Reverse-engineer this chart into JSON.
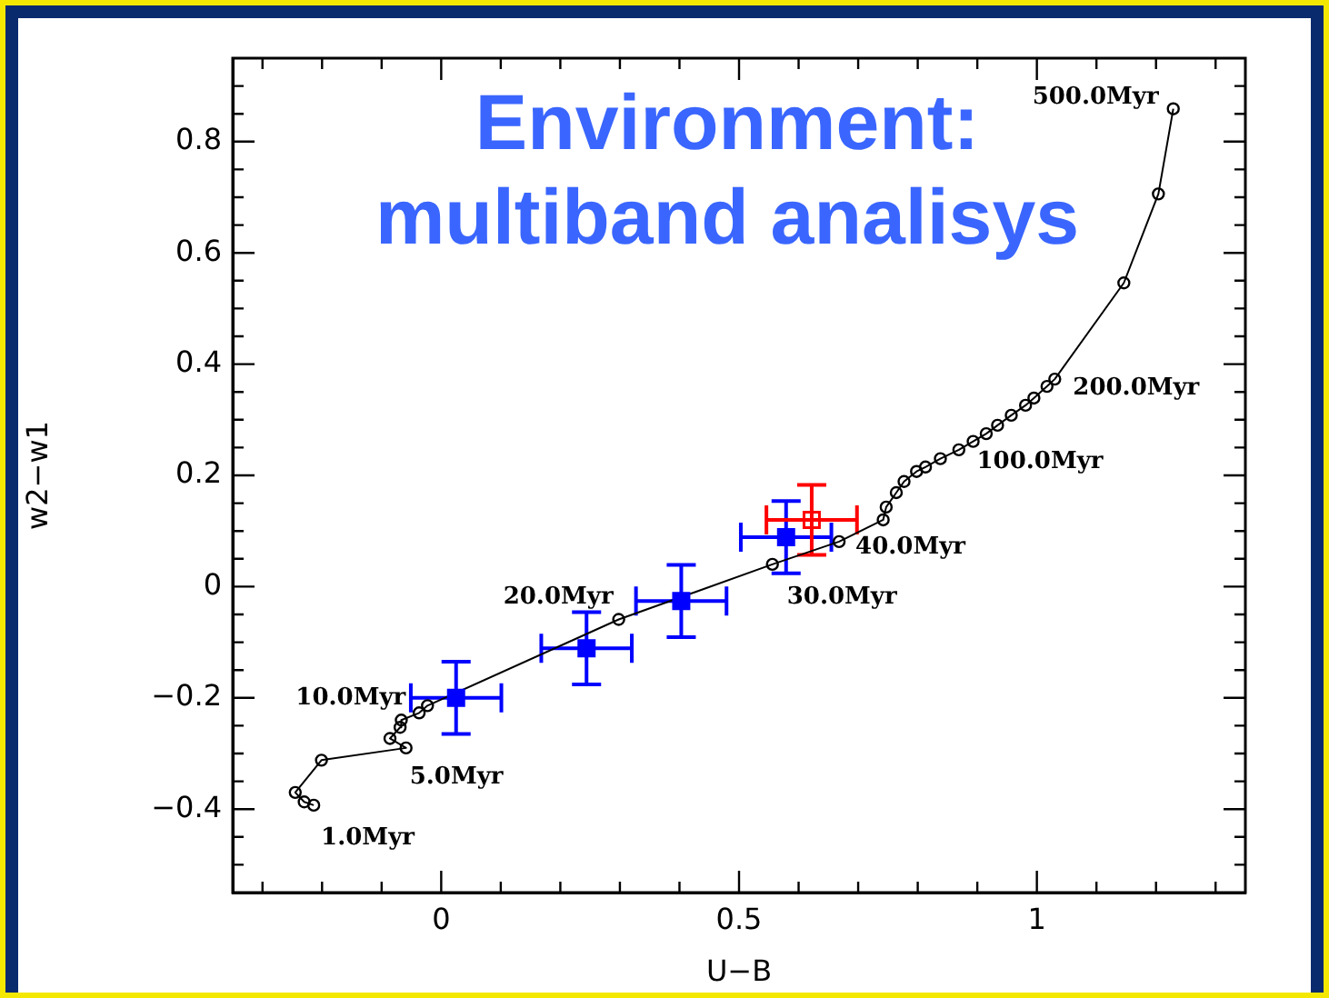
{
  "chart_data": {
    "type": "line",
    "title": "Environment: multiband analisys",
    "xlabel": "U−B",
    "ylabel": "w2−w1",
    "xlim": [
      -0.35,
      1.35
    ],
    "ylim": [
      -0.55,
      0.95
    ],
    "xticks": [
      {
        "value": -0.3,
        "label": null
      },
      {
        "value": -0.2,
        "label": null
      },
      {
        "value": -0.1,
        "label": null
      },
      0,
      {
        "value": 0.1,
        "label": null
      },
      {
        "value": 0.2,
        "label": null
      },
      {
        "value": 0.3,
        "label": null
      },
      {
        "value": 0.4,
        "label": null
      },
      0.5,
      {
        "value": 0.6,
        "label": null
      },
      {
        "value": 0.7,
        "label": null
      },
      {
        "value": 0.8,
        "label": null
      },
      {
        "value": 0.9,
        "label": null
      },
      1,
      {
        "value": 1.1,
        "label": null
      },
      {
        "value": 1.2,
        "label": null
      },
      {
        "value": 1.3,
        "label": null
      }
    ],
    "yticks": [
      {
        "value": -0.5,
        "label": null
      },
      {
        "value": -0.45,
        "label": null
      },
      {
        "value": -0.4,
        "label": "−0.4"
      },
      {
        "value": -0.35,
        "label": null
      },
      {
        "value": -0.3,
        "label": null
      },
      {
        "value": -0.25,
        "label": null
      },
      {
        "value": -0.2,
        "label": "−0.2"
      },
      {
        "value": -0.15,
        "label": null
      },
      {
        "value": -0.1,
        "label": null
      },
      {
        "value": -0.05,
        "label": null
      },
      0,
      {
        "value": 0.05,
        "label": null
      },
      {
        "value": 0.1,
        "label": null
      },
      {
        "value": 0.15,
        "label": null
      },
      0.2,
      {
        "value": 0.25,
        "label": null
      },
      {
        "value": 0.3,
        "label": null
      },
      {
        "value": 0.35,
        "label": null
      },
      0.4,
      {
        "value": 0.45,
        "label": null
      },
      {
        "value": 0.5,
        "label": null
      },
      {
        "value": 0.55,
        "label": null
      },
      0.6,
      {
        "value": 0.65,
        "label": null
      },
      {
        "value": 0.7,
        "label": null
      },
      {
        "value": 0.75,
        "label": null
      },
      0.8,
      {
        "value": 0.85,
        "label": null
      },
      {
        "value": 0.9,
        "label": null
      }
    ],
    "grid": false,
    "legend": false,
    "series": [
      {
        "color": "#000000",
        "marker": "circle",
        "x": [
          -0.214,
          -0.23,
          -0.245,
          -0.201,
          -0.059,
          -0.086,
          -0.069,
          -0.067,
          -0.037,
          -0.023,
          0.298,
          0.556,
          0.668,
          0.742,
          0.747,
          0.764,
          0.777,
          0.798,
          0.813,
          0.838,
          0.869,
          0.893,
          0.915,
          0.934,
          0.957,
          0.981,
          0.995,
          1.017,
          1.03,
          1.146,
          1.204,
          1.229
        ],
        "values": [
          -0.393,
          -0.387,
          -0.37,
          -0.312,
          -0.29,
          -0.273,
          -0.253,
          -0.24,
          -0.227,
          -0.214,
          -0.059,
          0.04,
          0.081,
          0.12,
          0.143,
          0.169,
          0.189,
          0.207,
          0.215,
          0.23,
          0.246,
          0.261,
          0.275,
          0.29,
          0.308,
          0.326,
          0.339,
          0.36,
          0.373,
          0.546,
          0.706,
          0.859
        ]
      },
      {
        "type": "scatter",
        "color": "#0000ff",
        "marker": "square",
        "x": [
          0.025,
          0.244,
          0.403,
          0.579
        ],
        "values": [
          -0.2,
          -0.111,
          -0.026,
          0.089
        ],
        "errors": [
          0.065,
          0.065,
          0.065,
          0.065
        ],
        "xerrors": [
          0.076,
          0.076,
          0.076,
          0.076
        ]
      },
      {
        "type": "scatter",
        "color": "#ff0000",
        "marker": "square",
        "x": [
          0.622
        ],
        "values": [
          0.12
        ],
        "errors": [
          0.063
        ],
        "xerrors": [
          0.076
        ]
      }
    ],
    "annotations": [
      {
        "text": "1.0Myr",
        "x": -0.214,
        "y": -0.393
      },
      {
        "text": "5.0Myr",
        "x": -0.059,
        "y": -0.29
      },
      {
        "text": "10.0Myr",
        "x": -0.023,
        "y": -0.214
      },
      {
        "text": "20.0Myr",
        "x": 0.298,
        "y": -0.059
      },
      {
        "text": "30.0Myr",
        "x": 0.556,
        "y": 0.04
      },
      {
        "text": "40.0Myr",
        "x": 0.668,
        "y": 0.081
      },
      {
        "text": "100.0Myr",
        "x": 0.838,
        "y": 0.23
      },
      {
        "text": "200.0Myr",
        "x": 1.03,
        "y": 0.373
      },
      {
        "text": "500.0Myr",
        "x": 1.229,
        "y": 0.859
      }
    ]
  }
}
